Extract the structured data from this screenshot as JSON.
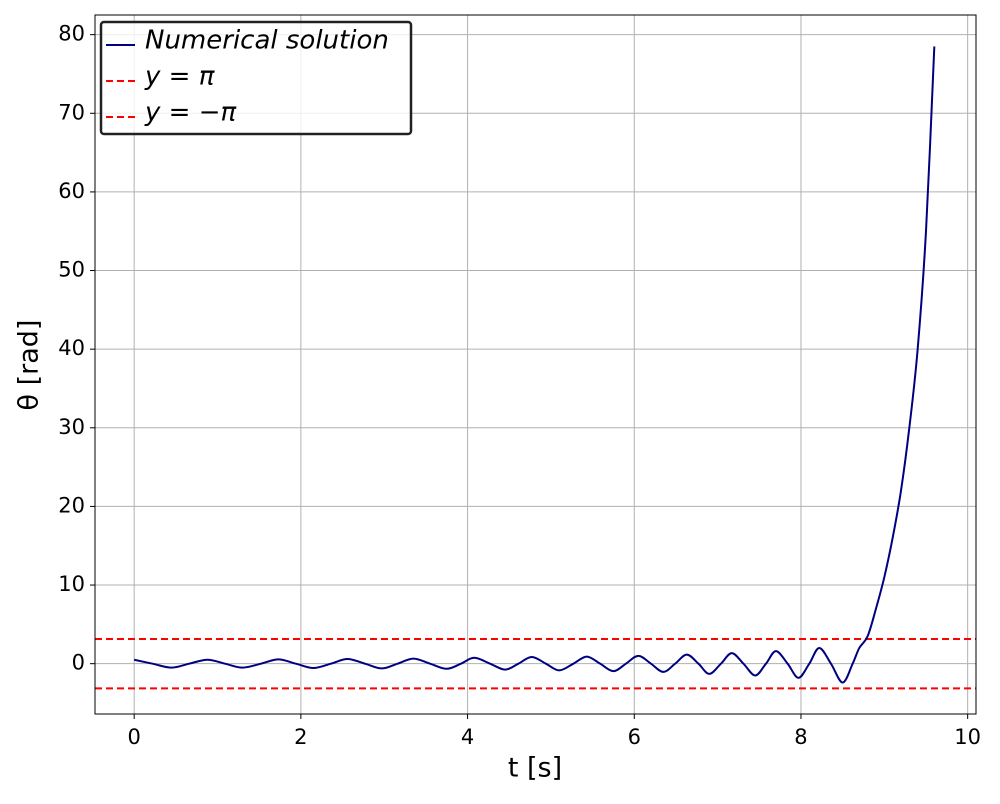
{
  "chart_data": {
    "type": "line",
    "xlabel": "t [s]",
    "ylabel": "θ [rad]",
    "x": [
      0,
      0.22,
      0.45,
      0.66,
      0.88,
      1.09,
      1.3,
      1.52,
      1.73,
      1.94,
      2.15,
      2.36,
      2.56,
      2.77,
      2.97,
      3.16,
      3.35,
      3.55,
      3.75,
      3.92,
      4.08,
      4.27,
      4.45,
      4.61,
      4.77,
      4.94,
      5.1,
      5.27,
      5.43,
      5.59,
      5.75,
      5.9,
      6.05,
      6.2,
      6.35,
      6.49,
      6.63,
      6.77,
      6.9,
      7.04,
      7.17,
      7.31,
      7.45,
      7.58,
      7.7,
      7.84,
      7.97,
      8.1,
      8.22,
      8.36,
      8.5,
      8.62,
      8.7,
      8.8,
      8.9,
      9.0,
      9.1,
      9.2,
      9.3,
      9.4,
      9.5,
      9.6
    ],
    "series": [
      {
        "name": "Numerical solution",
        "color": "#000080",
        "values": [
          0.5,
          0,
          -0.5,
          0,
          0.5,
          0,
          -0.5,
          0,
          0.55,
          0,
          -0.55,
          0,
          0.6,
          0,
          -0.6,
          0,
          0.65,
          0,
          -0.65,
          0,
          0.75,
          0,
          -0.75,
          0,
          0.85,
          0,
          -0.85,
          0,
          0.9,
          0,
          -0.95,
          0,
          1.0,
          0,
          -1.05,
          0,
          1.15,
          0,
          -1.3,
          0,
          1.35,
          0,
          -1.5,
          0,
          1.6,
          0,
          -1.8,
          0,
          2.0,
          0,
          -2.4,
          0,
          2.0,
          3.5,
          7,
          11,
          16,
          22,
          30,
          40,
          55,
          78.5
        ]
      }
    ],
    "hlines": [
      {
        "name": "y = π",
        "value": 3.14159,
        "color": "#ff0000"
      },
      {
        "name": "y = −π",
        "value": -3.14159,
        "color": "#ff0000"
      }
    ],
    "xlim": [
      -0.47,
      10.1
    ],
    "ylim": [
      -6.4,
      82.5
    ],
    "xticks": [
      0,
      2,
      4,
      6,
      8,
      10
    ],
    "yticks": [
      0,
      10,
      20,
      30,
      40,
      50,
      60,
      70,
      80
    ],
    "grid": true,
    "legend": "upper left"
  }
}
